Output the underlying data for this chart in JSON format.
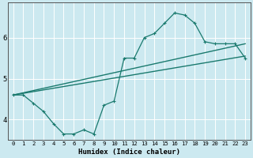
{
  "xlabel": "Humidex (Indice chaleur)",
  "bg_color": "#cce9f0",
  "line_color": "#1a7a6e",
  "grid_color": "#ffffff",
  "xlim": [
    -0.5,
    23.5
  ],
  "ylim": [
    3.5,
    6.85
  ],
  "yticks": [
    4,
    5,
    6
  ],
  "xticks": [
    0,
    1,
    2,
    3,
    4,
    5,
    6,
    7,
    8,
    9,
    10,
    11,
    12,
    13,
    14,
    15,
    16,
    17,
    18,
    19,
    20,
    21,
    22,
    23
  ],
  "line1_x": [
    0,
    1,
    2,
    3,
    4,
    5,
    6,
    7,
    8,
    9,
    10,
    11,
    12,
    13,
    14,
    15,
    16,
    17,
    18,
    19,
    20,
    21,
    22,
    23
  ],
  "line1_y": [
    4.6,
    4.6,
    4.4,
    4.2,
    3.9,
    3.65,
    3.65,
    3.75,
    3.65,
    4.35,
    4.45,
    5.5,
    5.5,
    6.0,
    6.1,
    6.35,
    6.6,
    6.55,
    6.35,
    5.9,
    5.85,
    5.85,
    5.85,
    5.5
  ],
  "line2_x": [
    0,
    23
  ],
  "line2_y": [
    4.6,
    5.85
  ],
  "line3_x": [
    0,
    23
  ],
  "line3_y": [
    4.6,
    5.55
  ]
}
